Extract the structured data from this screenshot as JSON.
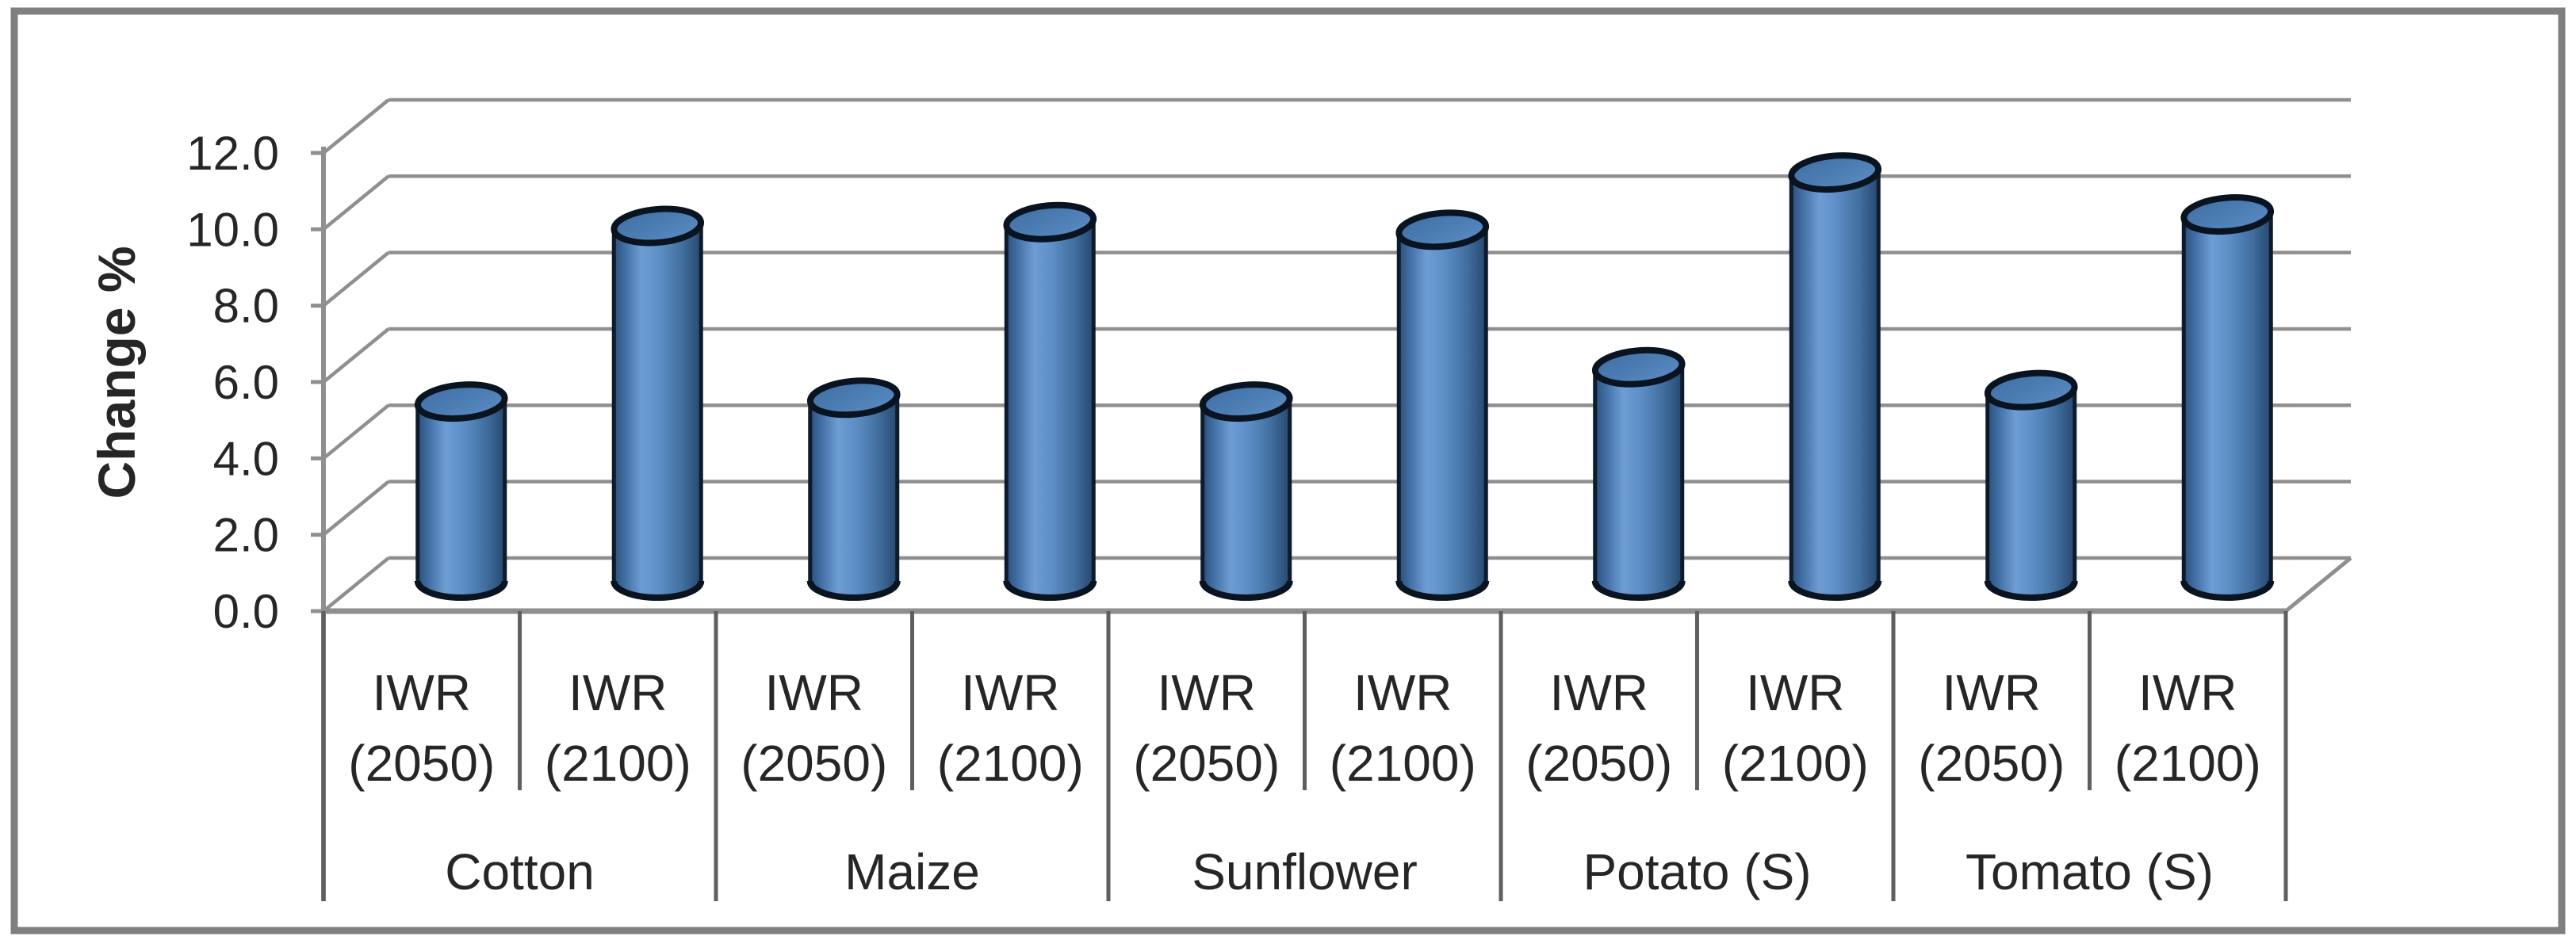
{
  "figure": {
    "background": "#ffffff",
    "border_color": "#7f7f7f"
  },
  "chart_data": {
    "type": "bar",
    "subtype": "3d-cylinder",
    "title": "",
    "ylabel": "Change %",
    "xlabel": "",
    "ylim": [
      0,
      12
    ],
    "ytick_step": 2,
    "ytick_values": [
      0,
      2,
      4,
      6,
      8,
      10,
      12
    ],
    "ytick_labels": [
      "0.0",
      "2.0",
      "4.0",
      "6.0",
      "8.0",
      "10.0",
      "12.0"
    ],
    "grid": true,
    "legend_position": "none",
    "categories": [
      "Cotton",
      "Maize",
      "Sunflower",
      "Potato (S)",
      "Tomato (S)"
    ],
    "sub_categories": [
      {
        "line1": "IWR",
        "line2": "(2050)"
      },
      {
        "line1": "IWR",
        "line2": "(2100)"
      }
    ],
    "series": [
      {
        "name": "IWR (2050)",
        "values": [
          4.7,
          4.8,
          4.7,
          5.6,
          5.0
        ]
      },
      {
        "name": "IWR (2100)",
        "values": [
          9.3,
          9.4,
          9.2,
          10.7,
          9.6
        ]
      }
    ],
    "colors": {
      "bar_fill": "#4f81bd",
      "bar_fill_light": "#6e9dd4",
      "bar_fill_dark": "#2c4f78",
      "bar_top_fill": "#4b7db3",
      "bar_outline": "#0a1420",
      "gridline": "#8f8f8f",
      "axis_line": "#7f7f7f",
      "table_line": "#5f5f5f",
      "text": "#262626"
    }
  }
}
